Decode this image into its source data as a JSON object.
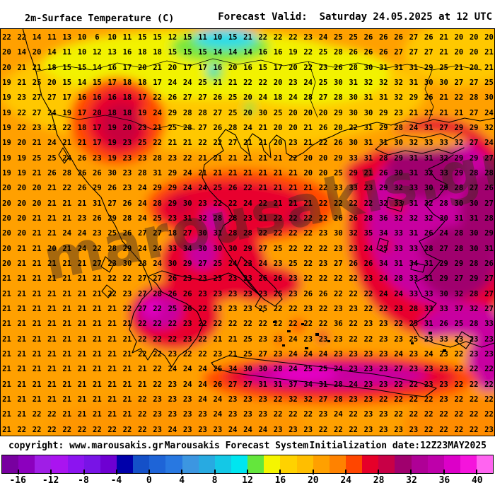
{
  "header": {
    "title": "2m-Surface Temperature (C)",
    "forecast_label": "Forecast Valid:",
    "forecast_value": "Saturday 24.05.2025 at 12 UTC"
  },
  "footer": {
    "copyright": "copyright: www.marousakis.gr",
    "system": "Marousakis Forecast System",
    "init": "Initialization date:12Z23MAY2025"
  },
  "watermark": "marousakis.gr",
  "colorbar": {
    "unit": "C",
    "range_min": -18,
    "range_max": 42,
    "cell_step": 2,
    "colors": [
      "#7800A0",
      "#8C00BE",
      "#A01EE6",
      "#AA14F0",
      "#8C14F0",
      "#7814E6",
      "#6E00D2",
      "#0000AA",
      "#1450C8",
      "#1E64D7",
      "#2878E1",
      "#3C96E1",
      "#28AAE1",
      "#14C8E6",
      "#00E6F0",
      "#64E63C",
      "#F5F500",
      "#FFD200",
      "#FFBE00",
      "#FFA000",
      "#FF8200",
      "#FF4600",
      "#E60029",
      "#C80046",
      "#A0006E",
      "#AF0096",
      "#BE00AA",
      "#DC00C8",
      "#F514DC",
      "#FF64F0"
    ],
    "tick_labels": [
      "-16",
      "-12",
      "-8",
      "-4",
      "0",
      "4",
      "8",
      "12",
      "16",
      "20",
      "24",
      "28",
      "32",
      "36",
      "40"
    ]
  },
  "map_colors": {
    "sea_orange": "#FFA000",
    "gold": "#FFC800",
    "yellow": "#F2F200",
    "green": "#78E63C",
    "cyan": "#2ADCE8",
    "orange_red": "#FF4A00",
    "red": "#E8002E",
    "crimson": "#C8003C",
    "magenta": "#C800A0",
    "purple": "#A0006E",
    "bright_magenta": "#E600C8"
  },
  "map_grid": {
    "rows": [
      "22 22 14 11 13 10 6 10 11 15 15 12 15 11 10 15 21 22 22 22 23 24 25 25 26 26 26 27 26 21 20 20 20",
      "20 14 20 14 11 10 12 13 16 18 18 15 15 15 14 14 14 16 16 19 22 25 28 26 26 26 27 27 27 21 20 20 21",
      "20 21 21 18 15 15 14 16 17 20 21 20 17 17 16 20 16 15 17 20 22 23 26 28 30 31 31 31 29 25 21 20 21",
      "19 21 25 20 15 14 15 17 18 18 17 24 24 25 21 21 22 22 20 23 24 25 30 31 32 32 32 31 30 30 27 27 25",
      "19 23 27 27 17 16 16 16 18 17 22 26 27 27 26 25 20 24 18 24 28 27 28 30 31 31 32 29 26 21 22 28 30",
      "19 22 27 24 19 17 20 18 18 19 24 29 28 28 27 25 20 30 25 20 20 20 29 30 30 29 23 21 21 21 21 27 24",
      "19 22 23 23 22 18 17 19 20 23 21 25 28 27 26 28 24 21 20 20 21 26 20 22 31 29 28 24 31 27 29 29 32",
      "19 20 21 24 21 21 17 19 23 25 22 21 21 22 22 27 21 21 20 23 21 22 26 30 31 31 30 32 33 33 32 27 24",
      "19 19 25 25 24 26 23 19 23 23 28 23 22 21 21 21 21 21 21 22 20 20 29 33 31 28 29 31 31 32 29 29 27",
      "19 19 21 26 28 26 26 30 23 28 31 29 24 21 21 21 21 21 21 21 20 20 25 29 21 26 30 31 32 33 29 28 28",
      "20 20 20 21 22 26 29 26 23 24 29 29 24 24 25 26 22 21 21 21 21 22 33 33 23 29 32 33 30 29 28 27 26",
      "20 20 20 21 21 21 31 27 26 24 28 29 30 23 22 22 24 22 21 21 21 22 22 22 22 32 33 31 32 28 30 30 27",
      "20 20 21 21 21 23 26 29 28 24 25 23 31 32 28 28 23 21 22 22 22 22 26 26 28 36 32 32 32 30 31 31 28",
      "20 20 21 21 24 24 23 25 26 27 27 18 27 30 31 28 28 22 22 22 22 23 30 32 35 34 33 31 26 24 28 30 29",
      "20 21 21 20 21 24 22 28 29 24 24 33 34 30 30 30 29 27 25 22 22 22 23 23 24 25 33 33 28 27 28 30 31",
      "20 21 21 21 21 21 27 23 30 28 24 30 29 27 25 24 23 24 23 25 22 23 27 26 26 34 31 34 31 29 29 28 26",
      "21 21 21 21 21 21 21 22 22 27 27 26 23 23 23 23 23 26 26 23 22 22 22 22 23 24 28 33 31 29 27 29 27",
      "21 21 21 21 21 21 21 22 23 27 28 26 26 23 23 23 23 23 25 23 26 26 22 22 22 24 24 33 33 30 32 28 27",
      "21 21 21 21 21 21 21 21 22 27 22 25 26 22 23 23 23 25 22 22 23 22 23 23 22 22 23 28 33 33 37 32 27",
      "21 21 21 21 21 21 21 21 21 22 22 22 23 22 22 22 22 22 22 22 22 22 36 22 23 23 22 25 31 26 25 28 33",
      "21 21 21 21 21 21 21 21 21 22 22 22 23 22 21 21 25 23 23 24 23 23 23 22 22 23 23 25 23 33 23 23 23",
      "21 21 21 21 21 21 21 21 21 22 22 23 22 22 23 21 25 27 23 24 24 24 23 23 23 23 24 23 24 23 22 23 23",
      "21 21 21 21 21 21 21 21 21 21 22 24 24 24 26 34 30 30 28 24 25 25 24 23 23 23 27 23 23 23 22 22 22",
      "21 21 21 21 21 21 21 21 21 21 22 23 24 24 26 27 27 31 31 37 34 31 28 24 23 23 22 22 23 23 22 22 22",
      "21 21 21 21 21 21 21 21 21 22 23 23 23 24 24 23 23 23 22 32 32 27 28 23 23 22 22 22 22 23 22 22 22",
      "21 21 22 22 21 21 21 21 21 22 23 23 23 23 24 23 23 23 22 22 22 23 24 22 23 23 22 22 22 22 22 22 22",
      "21 22 22 22 22 22 22 22 22 22 23 24 23 23 23 24 24 24 23 23 23 22 22 22 23 23 23 23 22 22 22 22 23"
    ]
  }
}
